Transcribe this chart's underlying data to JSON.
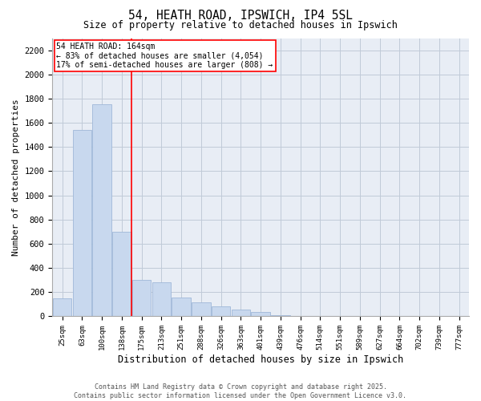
{
  "title": "54, HEATH ROAD, IPSWICH, IP4 5SL",
  "subtitle": "Size of property relative to detached houses in Ipswich",
  "xlabel": "Distribution of detached houses by size in Ipswich",
  "ylabel": "Number of detached properties",
  "categories": [
    "25sqm",
    "63sqm",
    "100sqm",
    "138sqm",
    "175sqm",
    "213sqm",
    "251sqm",
    "288sqm",
    "326sqm",
    "363sqm",
    "401sqm",
    "439sqm",
    "476sqm",
    "514sqm",
    "551sqm",
    "589sqm",
    "627sqm",
    "664sqm",
    "702sqm",
    "739sqm",
    "777sqm"
  ],
  "values": [
    150,
    1540,
    1750,
    700,
    300,
    280,
    155,
    115,
    85,
    55,
    35,
    8,
    0,
    0,
    0,
    0,
    0,
    0,
    0,
    0,
    0
  ],
  "bar_color": "#C8D8EE",
  "bar_edge_color": "#A0B8D8",
  "red_line_x": 3.5,
  "red_line_label": "54 HEATH ROAD: 164sqm",
  "annotation_line1": "← 83% of detached houses are smaller (4,054)",
  "annotation_line2": "17% of semi-detached houses are larger (808) →",
  "annotation_box_color": "white",
  "annotation_box_edge": "red",
  "ylim": [
    0,
    2300
  ],
  "yticks": [
    0,
    200,
    400,
    600,
    800,
    1000,
    1200,
    1400,
    1600,
    1800,
    2000,
    2200
  ],
  "grid_color": "#C0CAD8",
  "background_color": "#E8EDF5",
  "footer_line1": "Contains HM Land Registry data © Crown copyright and database right 2025.",
  "footer_line2": "Contains public sector information licensed under the Open Government Licence v3.0."
}
